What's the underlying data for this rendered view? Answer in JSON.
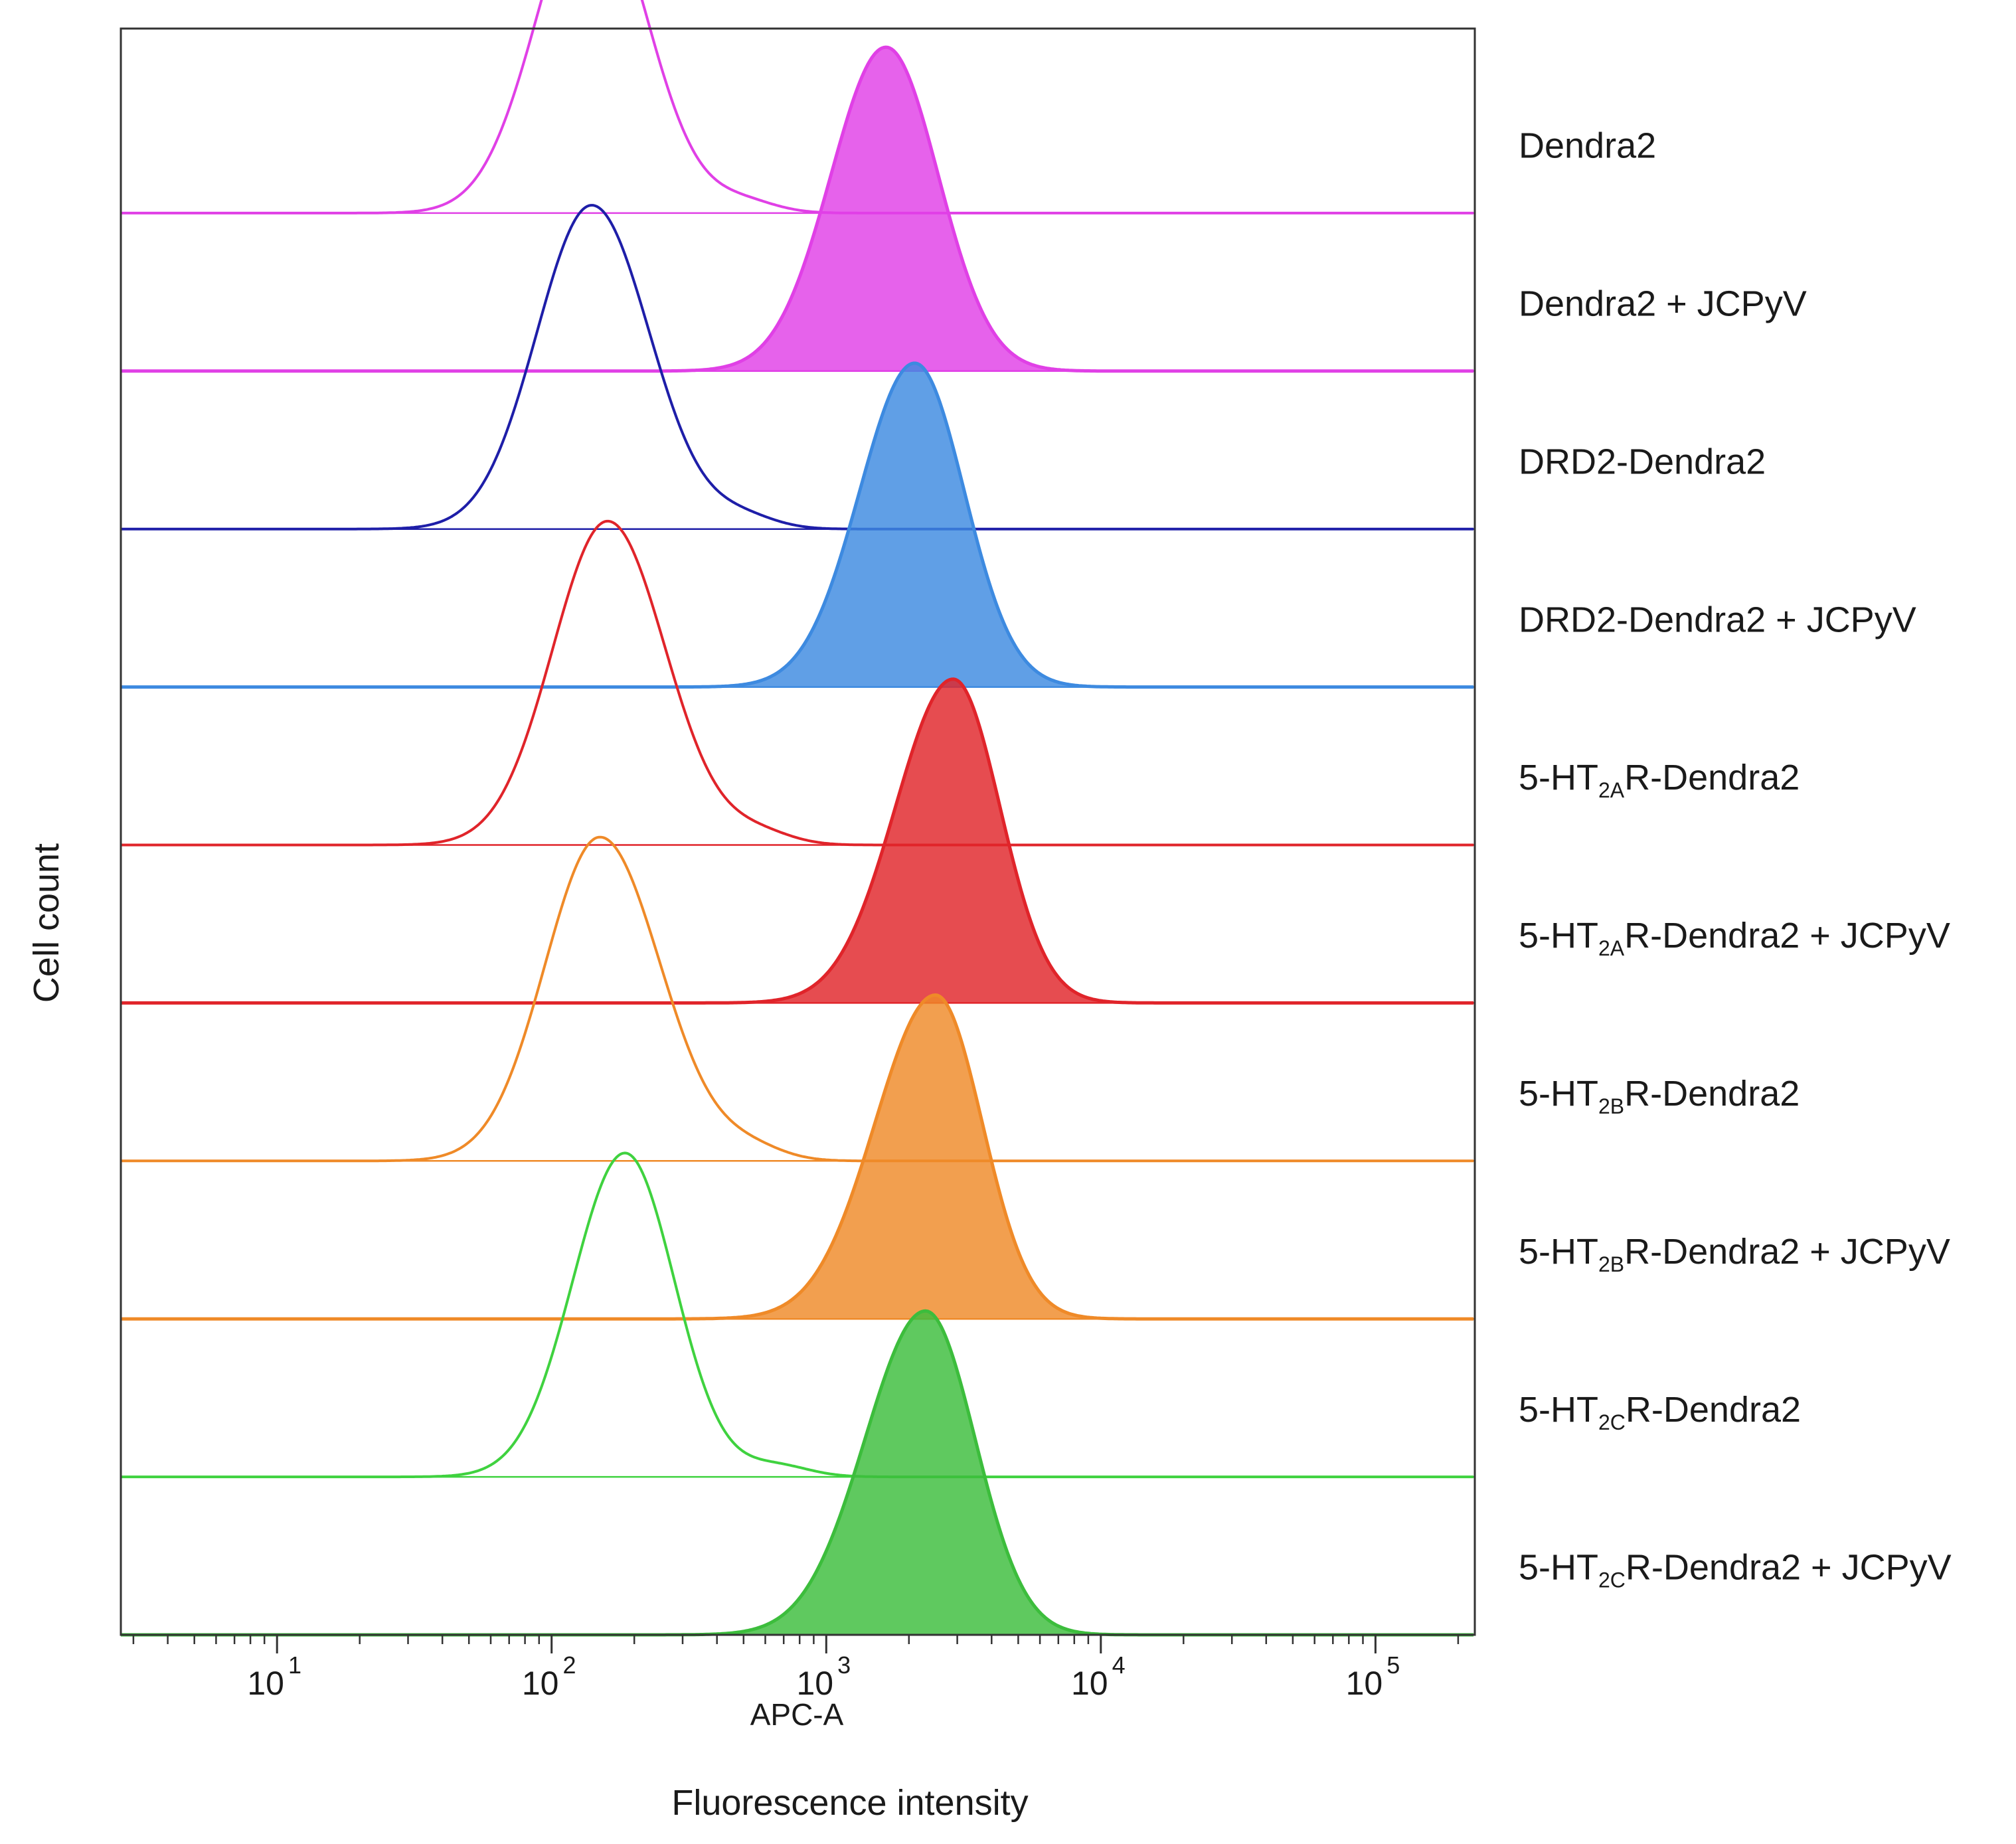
{
  "chart_data": {
    "type": "histogram-overlay",
    "title": "",
    "xlabel": "Fluorescence intensity",
    "x_inner_label": "APC-A",
    "ylabel": "Cell count",
    "x_scale": "log",
    "xlim": [
      2.7,
      230000
    ],
    "x_ticks": [
      {
        "value": 10,
        "base": "10",
        "exp": "1"
      },
      {
        "value": 100,
        "base": "10",
        "exp": "2"
      },
      {
        "value": 1000,
        "base": "10",
        "exp": "3"
      },
      {
        "value": 10000,
        "base": "10",
        "exp": "4"
      },
      {
        "value": 100000,
        "base": "10",
        "exp": "5"
      }
    ],
    "series": [
      {
        "pre": "Dendra2",
        "sub": "",
        "post": "",
        "color": "#e040e6",
        "filled": false,
        "peak": 140,
        "width_lo": 0.2,
        "width_hi": 0.2
      },
      {
        "pre": "Dendra2 + JCPyV",
        "sub": "",
        "post": "",
        "color": "#e040e6",
        "filled": true,
        "peak": 1650,
        "width_lo": 0.2,
        "width_hi": 0.19
      },
      {
        "pre": "DRD2-Dendra2",
        "sub": "",
        "post": "",
        "color": "#1e1ea8",
        "filled": false,
        "peak": 140,
        "width_lo": 0.2,
        "width_hi": 0.21
      },
      {
        "pre": "DRD2-Dendra2 + JCPyV",
        "sub": "",
        "post": "",
        "color": "#3d8ae0",
        "filled": true,
        "peak": 2100,
        "width_lo": 0.2,
        "width_hi": 0.18
      },
      {
        "pre": "5-HT",
        "sub": "2A",
        "post": "R-Dendra2",
        "color": "#e0242a",
        "filled": false,
        "peak": 160,
        "width_lo": 0.2,
        "width_hi": 0.21
      },
      {
        "pre": "5-HT",
        "sub": "2A",
        "post": "R-Dendra2 + JCPyV",
        "color": "#e0242a",
        "filled": true,
        "peak": 2900,
        "width_lo": 0.21,
        "width_hi": 0.17
      },
      {
        "pre": "5-HT",
        "sub": "2B",
        "post": "R-Dendra2",
        "color": "#ef8a28",
        "filled": false,
        "peak": 150,
        "width_lo": 0.2,
        "width_hi": 0.22
      },
      {
        "pre": "5-HT",
        "sub": "2B",
        "post": "R-Dendra2 + JCPyV",
        "color": "#ef8a28",
        "filled": true,
        "peak": 2500,
        "width_lo": 0.22,
        "width_hi": 0.17
      },
      {
        "pre": "5-HT",
        "sub": "2C",
        "post": "R-Dendra2",
        "color": "#3fd23f",
        "filled": false,
        "peak": 185,
        "width_lo": 0.19,
        "width_hi": 0.18
      },
      {
        "pre": "5-HT",
        "sub": "2C",
        "post": "R-Dendra2 + JCPyV",
        "color": "#3cbd3c",
        "filled": true,
        "peak": 2300,
        "width_lo": 0.22,
        "width_hi": 0.18
      }
    ]
  }
}
